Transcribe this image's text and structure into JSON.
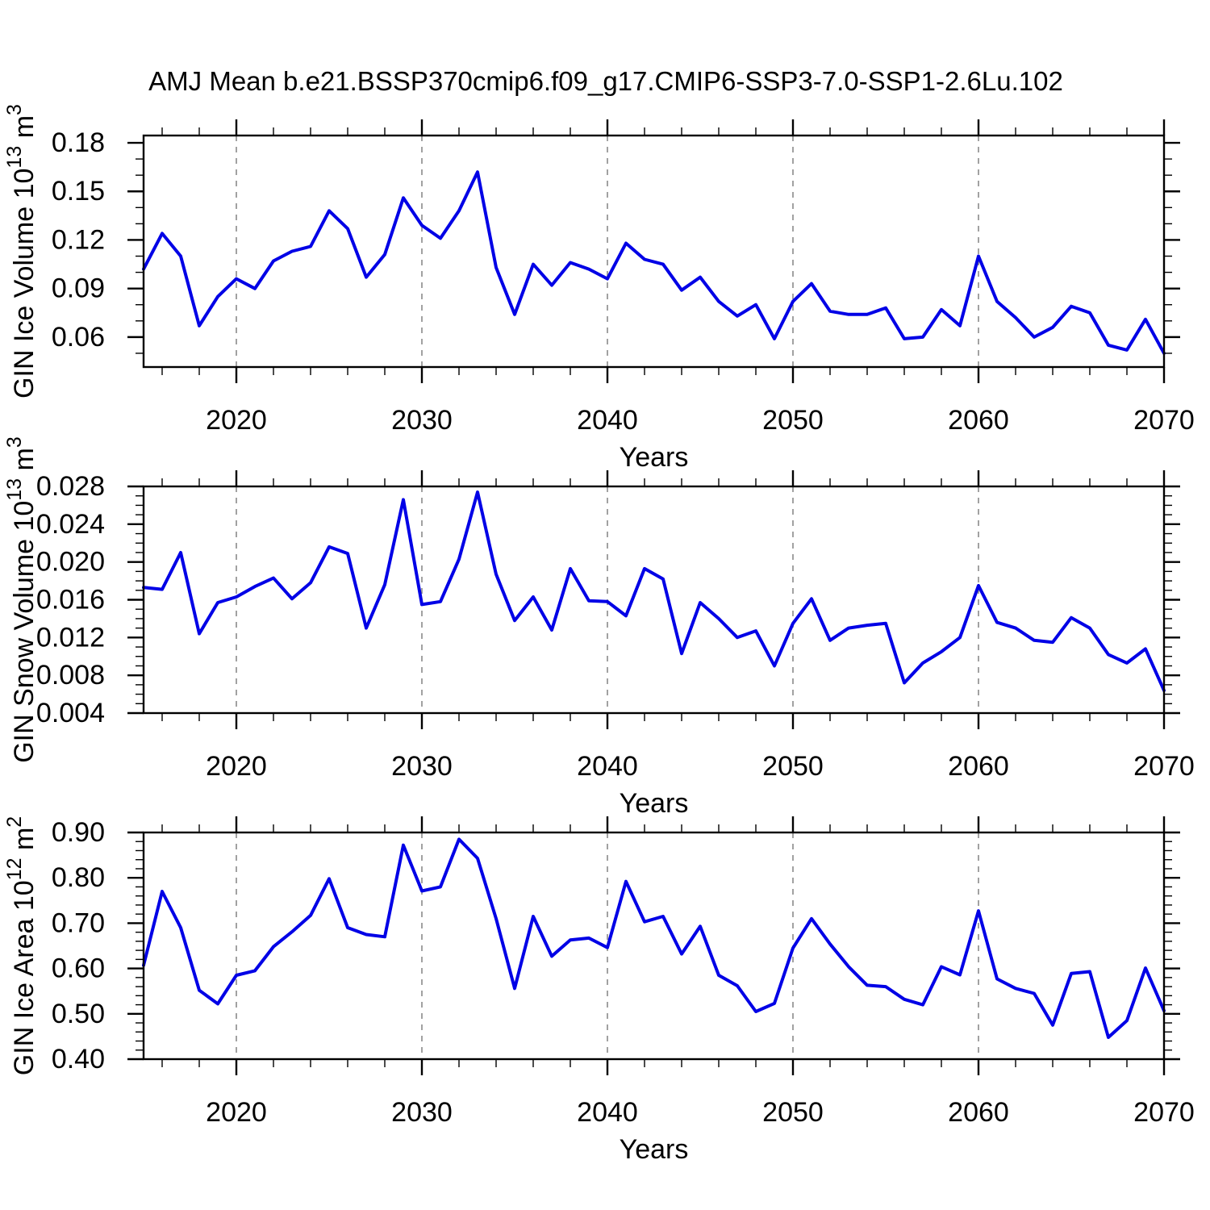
{
  "title": "AMJ Mean b.e21.BSSP370cmip6.f09_g17.CMIP6-SSP3-7.0-SSP1-2.6Lu.102",
  "colors": {
    "line": "#0000E6",
    "grid": "#8A8A8A",
    "axis": "#000000",
    "text": "#000000",
    "background": "#FFFFFF"
  },
  "chart_data": [
    {
      "id": "ice-volume",
      "type": "line",
      "title": "AMJ Mean b.e21.BSSP370cmip6.f09_g17.CMIP6-SSP3-7.0-SSP1-2.6Lu.102",
      "ylabel": "GIN Ice Volume 10^13 m^3",
      "ylabel_parts": [
        {
          "t": "GIN Ice Volume 10"
        },
        {
          "t": "13",
          "sup": true
        },
        {
          "t": " m"
        },
        {
          "t": "3",
          "sup": true
        }
      ],
      "xlabel": "Years",
      "x_start": 2015,
      "x_end": 2070,
      "x_step": 1,
      "xlim": [
        2015,
        2070
      ],
      "ylim": [
        0.0415,
        0.1845
      ],
      "x_major_ticks": [
        2020,
        2030,
        2040,
        2050,
        2060,
        2070
      ],
      "x_major_labels": [
        "2020",
        "2030",
        "2040",
        "2050",
        "2060",
        "2070"
      ],
      "x_minor_step": 2,
      "gridlines": [
        2020,
        2030,
        2040,
        2050,
        2060
      ],
      "y_major_ticks": [
        {
          "v": 0.06,
          "label": "0.06"
        },
        {
          "v": 0.09,
          "label": "0.09"
        },
        {
          "v": 0.12,
          "label": "0.12"
        },
        {
          "v": 0.15,
          "label": "0.15"
        },
        {
          "v": 0.18,
          "label": "0.18"
        }
      ],
      "y_minor_step": 0.01,
      "grid_on": true,
      "legend": "none",
      "values": [
        0.102,
        0.124,
        0.11,
        0.067,
        0.085,
        0.096,
        0.09,
        0.107,
        0.113,
        0.116,
        0.138,
        0.127,
        0.097,
        0.111,
        0.146,
        0.129,
        0.121,
        0.138,
        0.162,
        0.103,
        0.074,
        0.105,
        0.092,
        0.106,
        0.102,
        0.096,
        0.118,
        0.108,
        0.105,
        0.089,
        0.097,
        0.082,
        0.073,
        0.08,
        0.059,
        0.082,
        0.093,
        0.076,
        0.074,
        0.074,
        0.078,
        0.059,
        0.06,
        0.077,
        0.067,
        0.11,
        0.082,
        0.072,
        0.06,
        0.066,
        0.079,
        0.075,
        0.055,
        0.052,
        0.071,
        0.05
      ]
    },
    {
      "id": "snow-volume",
      "type": "line",
      "ylabel": "GIN Snow Volume 10^13 m^3",
      "ylabel_parts": [
        {
          "t": "GIN Snow Volume 10"
        },
        {
          "t": "13",
          "sup": true
        },
        {
          "t": " m"
        },
        {
          "t": "3",
          "sup": true
        }
      ],
      "xlabel": "Years",
      "x_start": 2015,
      "x_end": 2070,
      "x_step": 1,
      "xlim": [
        2015,
        2070
      ],
      "ylim": [
        0.004,
        0.028
      ],
      "x_major_ticks": [
        2020,
        2030,
        2040,
        2050,
        2060,
        2070
      ],
      "x_major_labels": [
        "2020",
        "2030",
        "2040",
        "2050",
        "2060",
        "2070"
      ],
      "x_minor_step": 2,
      "gridlines": [
        2020,
        2030,
        2040,
        2050,
        2060
      ],
      "y_major_ticks": [
        {
          "v": 0.004,
          "label": "0.004"
        },
        {
          "v": 0.008,
          "label": "0.008"
        },
        {
          "v": 0.012,
          "label": "0.012"
        },
        {
          "v": 0.016,
          "label": "0.016"
        },
        {
          "v": 0.02,
          "label": "0.020"
        },
        {
          "v": 0.024,
          "label": "0.024"
        },
        {
          "v": 0.028,
          "label": "0.028"
        }
      ],
      "y_minor_step": 0.001,
      "grid_on": true,
      "legend": "none",
      "values": [
        0.0173,
        0.0171,
        0.021,
        0.0124,
        0.0157,
        0.0163,
        0.0174,
        0.0183,
        0.0161,
        0.0178,
        0.0216,
        0.0209,
        0.013,
        0.0176,
        0.0266,
        0.0155,
        0.0158,
        0.0203,
        0.0274,
        0.0187,
        0.0138,
        0.0163,
        0.0128,
        0.0193,
        0.0159,
        0.0158,
        0.0143,
        0.0193,
        0.0182,
        0.0103,
        0.0157,
        0.014,
        0.012,
        0.0127,
        0.009,
        0.0135,
        0.0161,
        0.0117,
        0.013,
        0.0133,
        0.0135,
        0.0072,
        0.0093,
        0.0105,
        0.012,
        0.0175,
        0.0136,
        0.013,
        0.0117,
        0.0115,
        0.0141,
        0.013,
        0.0102,
        0.0093,
        0.0108,
        0.0064
      ]
    },
    {
      "id": "ice-area",
      "type": "line",
      "ylabel": "GIN Ice Area 10^12 m^2",
      "ylabel_parts": [
        {
          "t": "GIN Ice Area 10"
        },
        {
          "t": "12",
          "sup": true
        },
        {
          "t": " m"
        },
        {
          "t": "2",
          "sup": true
        }
      ],
      "xlabel": "Years",
      "x_start": 2015,
      "x_end": 2070,
      "x_step": 1,
      "xlim": [
        2015,
        2070
      ],
      "ylim": [
        0.4,
        0.9
      ],
      "x_major_ticks": [
        2020,
        2030,
        2040,
        2050,
        2060,
        2070
      ],
      "x_major_labels": [
        "2020",
        "2030",
        "2040",
        "2050",
        "2060",
        "2070"
      ],
      "x_minor_step": 2,
      "gridlines": [
        2020,
        2030,
        2040,
        2050,
        2060
      ],
      "y_major_ticks": [
        {
          "v": 0.4,
          "label": "0.40"
        },
        {
          "v": 0.5,
          "label": "0.50"
        },
        {
          "v": 0.6,
          "label": "0.60"
        },
        {
          "v": 0.7,
          "label": "0.70"
        },
        {
          "v": 0.8,
          "label": "0.80"
        },
        {
          "v": 0.9,
          "label": "0.90"
        }
      ],
      "y_minor_step": 0.02,
      "grid_on": true,
      "legend": "none",
      "values": [
        0.607,
        0.77,
        0.69,
        0.552,
        0.522,
        0.585,
        0.595,
        0.648,
        0.681,
        0.717,
        0.798,
        0.69,
        0.675,
        0.67,
        0.872,
        0.771,
        0.78,
        0.885,
        0.843,
        0.71,
        0.556,
        0.715,
        0.627,
        0.663,
        0.667,
        0.646,
        0.792,
        0.703,
        0.715,
        0.632,
        0.693,
        0.585,
        0.562,
        0.505,
        0.523,
        0.645,
        0.71,
        0.654,
        0.604,
        0.563,
        0.56,
        0.532,
        0.52,
        0.604,
        0.586,
        0.727,
        0.577,
        0.556,
        0.545,
        0.475,
        0.589,
        0.593,
        0.448,
        0.485,
        0.601,
        0.507
      ]
    }
  ]
}
